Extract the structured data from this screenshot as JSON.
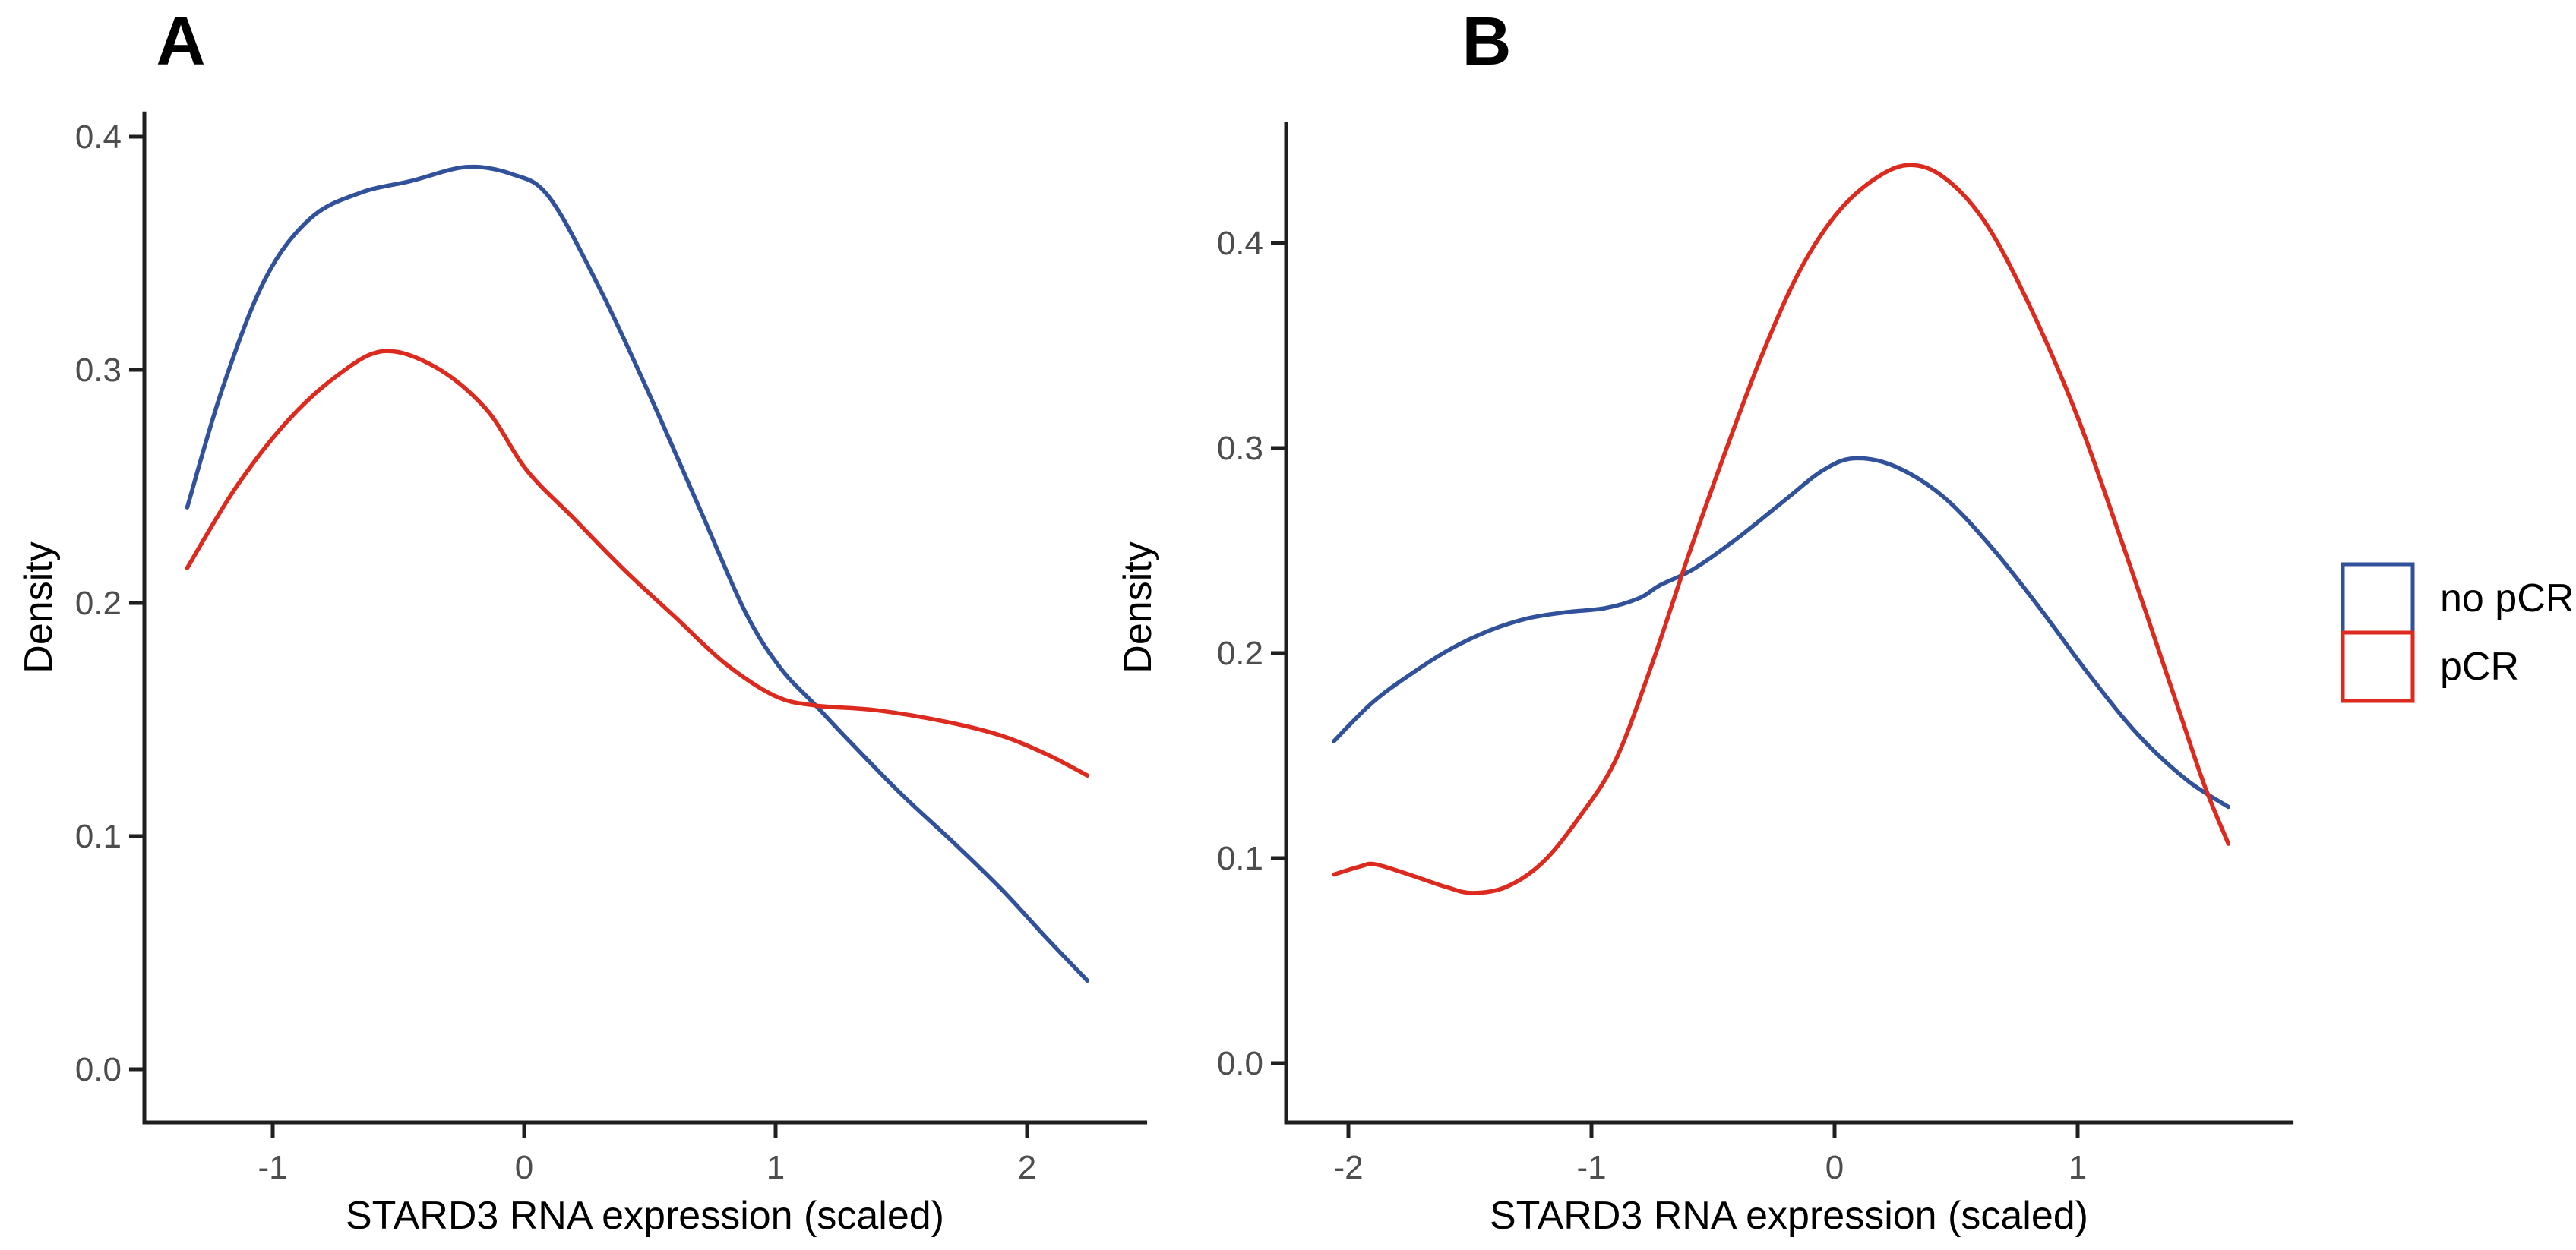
{
  "figure": {
    "background": "#ffffff",
    "axis_color": "#1f1f1f",
    "tick_label_color": "#4d4d4d",
    "legend": {
      "items": [
        {
          "key": "no_pcr",
          "label": "no pCR",
          "color": "#31519b"
        },
        {
          "key": "pcr",
          "label": "pCR",
          "color": "#dd2a1f"
        }
      ]
    }
  },
  "chart_data": [
    {
      "type": "line",
      "panel": "A",
      "title": "A",
      "xlabel": "STARD3 RNA expression (scaled)",
      "ylabel": "Density",
      "xlim": [
        -1.51,
        2.47
      ],
      "ylim": [
        0,
        0.41
      ],
      "xticks": [
        -1,
        0,
        1,
        2
      ],
      "xtick_labels": [
        "-1",
        "0",
        "1",
        "2"
      ],
      "yticks": [
        0.0,
        0.1,
        0.2,
        0.3,
        0.4
      ],
      "ytick_labels": [
        "0.0",
        "0.1",
        "0.2",
        "0.3",
        "0.4"
      ],
      "grid": false,
      "legend_position": "right-of-figure",
      "series": [
        {
          "name": "no pCR",
          "color": "#31519b",
          "x": [
            -1.34,
            -1.2,
            -1.03,
            -0.85,
            -0.65,
            -0.45,
            -0.23,
            -0.05,
            0.1,
            0.3,
            0.5,
            0.7,
            0.88,
            1.02,
            1.16,
            1.3,
            1.5,
            1.7,
            1.9,
            2.08,
            2.24
          ],
          "y": [
            0.241,
            0.292,
            0.339,
            0.365,
            0.376,
            0.381,
            0.387,
            0.384,
            0.374,
            0.335,
            0.289,
            0.24,
            0.196,
            0.172,
            0.156,
            0.14,
            0.118,
            0.098,
            0.077,
            0.056,
            0.038
          ]
        },
        {
          "name": "pCR",
          "color": "#dd2a1f",
          "x": [
            -1.34,
            -1.15,
            -0.95,
            -0.75,
            -0.56,
            -0.35,
            -0.15,
            0.01,
            0.2,
            0.4,
            0.6,
            0.8,
            1.0,
            1.16,
            1.4,
            1.68,
            1.9,
            2.08,
            2.24
          ],
          "y": [
            0.215,
            0.249,
            0.277,
            0.297,
            0.308,
            0.301,
            0.283,
            0.257,
            0.236,
            0.214,
            0.194,
            0.174,
            0.16,
            0.156,
            0.154,
            0.149,
            0.143,
            0.135,
            0.126
          ]
        }
      ]
    },
    {
      "type": "line",
      "panel": "B",
      "title": "B",
      "xlabel": "STARD3 RNA expression (scaled)",
      "ylabel": "Density",
      "xlim": [
        -2.26,
        1.88
      ],
      "ylim": [
        0,
        0.458
      ],
      "xticks": [
        -2,
        -1,
        0,
        1
      ],
      "xtick_labels": [
        "-2",
        "-1",
        "0",
        "1"
      ],
      "yticks": [
        0.0,
        0.1,
        0.2,
        0.3,
        0.4
      ],
      "ytick_labels": [
        "0.0",
        "0.1",
        "0.2",
        "0.3",
        "0.4"
      ],
      "grid": false,
      "legend_position": "right-of-figure",
      "series": [
        {
          "name": "no pCR",
          "color": "#31519b",
          "x": [
            -2.06,
            -1.9,
            -1.74,
            -1.58,
            -1.42,
            -1.26,
            -1.1,
            -0.94,
            -0.8,
            -0.72,
            -0.58,
            -0.4,
            -0.2,
            -0.05,
            0.08,
            0.25,
            0.45,
            0.65,
            0.85,
            1.05,
            1.25,
            1.45,
            1.62
          ],
          "y": [
            0.157,
            0.176,
            0.19,
            0.202,
            0.211,
            0.217,
            0.22,
            0.222,
            0.227,
            0.233,
            0.241,
            0.256,
            0.275,
            0.289,
            0.295,
            0.291,
            0.276,
            0.251,
            0.221,
            0.189,
            0.16,
            0.138,
            0.125
          ]
        },
        {
          "name": "pCR",
          "color": "#dd2a1f",
          "x": [
            -2.06,
            -1.95,
            -1.89,
            -1.75,
            -1.6,
            -1.49,
            -1.35,
            -1.2,
            -1.05,
            -0.9,
            -0.75,
            -0.6,
            -0.45,
            -0.3,
            -0.15,
            0.0,
            0.15,
            0.3,
            0.45,
            0.62,
            0.8,
            1.0,
            1.2,
            1.4,
            1.52,
            1.62
          ],
          "y": [
            0.092,
            0.096,
            0.097,
            0.092,
            0.086,
            0.083,
            0.086,
            0.098,
            0.12,
            0.148,
            0.195,
            0.248,
            0.298,
            0.345,
            0.385,
            0.413,
            0.43,
            0.438,
            0.432,
            0.41,
            0.37,
            0.315,
            0.248,
            0.178,
            0.136,
            0.107
          ]
        }
      ]
    }
  ]
}
